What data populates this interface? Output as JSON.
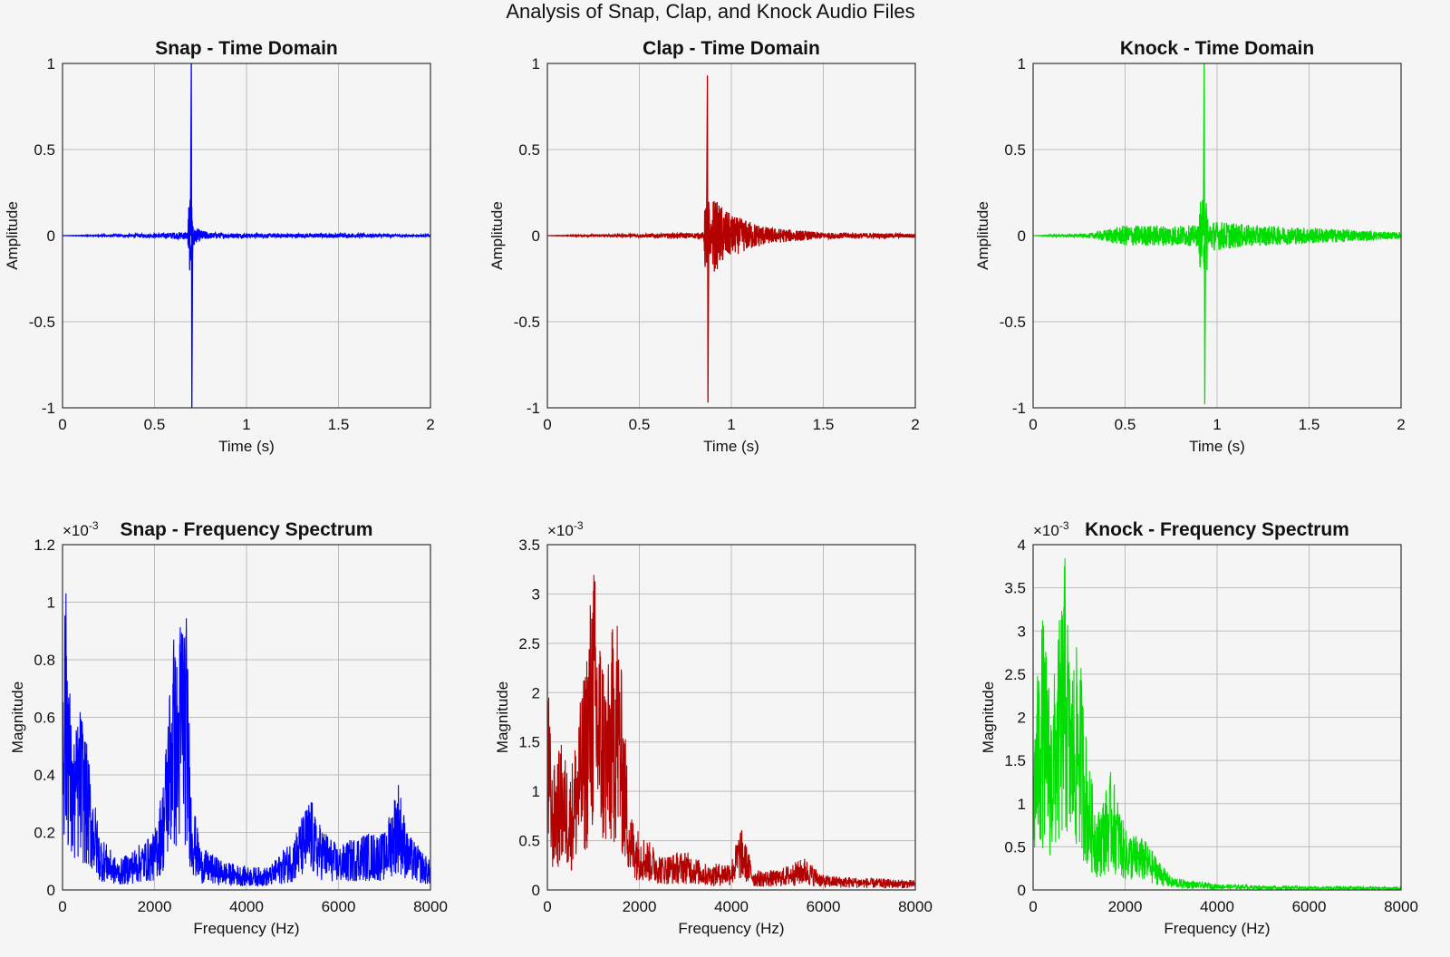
{
  "figure": {
    "suptitle": "Analysis of Snap, Clap, and Knock Audio Files"
  },
  "chart_data": [
    {
      "type": "line",
      "title": "Snap - Time Domain",
      "xlabel": "Time (s)",
      "ylabel": "Amplitude",
      "xlim": [
        0,
        2
      ],
      "ylim": [
        -1,
        1
      ],
      "xticks": [
        "0",
        "0.5",
        "1",
        "1.5",
        "2"
      ],
      "yticks": [
        "-1",
        "-0.5",
        "0",
        "0.5",
        "1"
      ],
      "color": "#0000ff",
      "grid": true,
      "series": [
        {
          "values": {
            "x": [
              0,
              0.3,
              0.5,
              0.68,
              0.7,
              0.7,
              0.72,
              0.8,
              1.0,
              1.5,
              2.0
            ],
            "y": [
              0,
              0.01,
              0.02,
              0.04,
              1.0,
              -1.0,
              0.07,
              0.03,
              0.02,
              0.02,
              0.01
            ]
          }
        }
      ]
    },
    {
      "type": "line",
      "title": "Clap - Time Domain",
      "xlabel": "Time (s)",
      "ylabel": "Amplitude",
      "xlim": [
        0,
        2
      ],
      "ylim": [
        -1,
        1
      ],
      "xticks": [
        "0",
        "0.5",
        "1",
        "1.5",
        "2"
      ],
      "yticks": [
        "-1",
        "-0.5",
        "0",
        "0.5",
        "1"
      ],
      "color": "#b30000",
      "grid": true,
      "series": [
        {
          "values": {
            "x": [
              0,
              0.3,
              0.6,
              0.85,
              0.87,
              0.87,
              0.9,
              1.0,
              1.2,
              1.5,
              2.0
            ],
            "y": [
              0,
              0.01,
              0.02,
              0.03,
              0.93,
              -0.97,
              0.37,
              0.2,
              0.08,
              0.03,
              0.02
            ]
          }
        }
      ]
    },
    {
      "type": "line",
      "title": "Knock - Time Domain",
      "xlabel": "Time (s)",
      "ylabel": "Amplitude",
      "xlim": [
        0,
        2
      ],
      "ylim": [
        -1,
        1
      ],
      "xticks": [
        "0",
        "0.5",
        "1",
        "1.5",
        "2"
      ],
      "yticks": [
        "-1",
        "-0.5",
        "0",
        "0.5",
        "1"
      ],
      "color": "#00dd00",
      "grid": true,
      "series": [
        {
          "values": {
            "x": [
              0,
              0.3,
              0.5,
              0.9,
              0.93,
              0.93,
              0.96,
              1.2,
              1.5,
              2.0
            ],
            "y": [
              0,
              0.02,
              0.1,
              0.1,
              1.0,
              -0.98,
              0.15,
              0.1,
              0.08,
              0.03
            ]
          }
        }
      ]
    },
    {
      "type": "line",
      "title": "Snap - Frequency Spectrum",
      "xlabel": "Frequency (Hz)",
      "ylabel": "Magnitude",
      "xlim": [
        0,
        8000
      ],
      "ylim": [
        0,
        1.2
      ],
      "xticks": [
        "0",
        "2000",
        "4000",
        "6000",
        "8000"
      ],
      "yticks": [
        "0",
        "0.2",
        "0.4",
        "0.6",
        "0.8",
        "1",
        "1.2"
      ],
      "exponent": "×10",
      "exponent_power": "-3",
      "color": "#0000ff",
      "grid": true,
      "series": [
        {
          "values": {
            "x": [
              0,
              100,
              200,
              400,
              800,
              1200,
              1600,
              2000,
              2200,
              2400,
              2500,
              2600,
              2700,
              2800,
              3000,
              3500,
              4000,
              4500,
              5000,
              5400,
              5500,
              6000,
              6500,
              7000,
              7300,
              7500,
              8000
            ],
            "y": [
              1.05,
              1.05,
              0.5,
              0.65,
              0.2,
              0.1,
              0.15,
              0.2,
              0.4,
              0.92,
              0.8,
              1.07,
              0.95,
              0.35,
              0.15,
              0.1,
              0.08,
              0.08,
              0.18,
              0.33,
              0.25,
              0.15,
              0.2,
              0.2,
              0.39,
              0.2,
              0.1
            ]
          }
        }
      ]
    },
    {
      "type": "line",
      "title": "",
      "xlabel": "Frequency (Hz)",
      "ylabel": "Magnitude",
      "xlim": [
        0,
        8000
      ],
      "ylim": [
        0,
        3.5
      ],
      "xticks": [
        "0",
        "2000",
        "4000",
        "6000",
        "8000"
      ],
      "yticks": [
        "0",
        "0.5",
        "1",
        "1.5",
        "2",
        "2.5",
        "3",
        "3.5"
      ],
      "exponent": "×10",
      "exponent_power": "-3",
      "color": "#b30000",
      "grid": true,
      "series": [
        {
          "values": {
            "x": [
              0,
              100,
              300,
              500,
              800,
              1000,
              1100,
              1300,
              1500,
              1800,
              2000,
              2500,
              3000,
              3500,
              4000,
              4200,
              4500,
              5000,
              5600,
              6000,
              7000,
              8000
            ],
            "y": [
              2.35,
              1.2,
              1.5,
              1.2,
              2.2,
              3.43,
              2.8,
              2.2,
              3.05,
              0.8,
              0.6,
              0.35,
              0.4,
              0.25,
              0.3,
              0.65,
              0.2,
              0.2,
              0.33,
              0.15,
              0.12,
              0.1
            ]
          }
        }
      ]
    },
    {
      "type": "line",
      "title": "Knock - Frequency Spectrum",
      "xlabel": "Frequency (Hz)",
      "ylabel": "Magnitude",
      "xlim": [
        0,
        8000
      ],
      "ylim": [
        0,
        4
      ],
      "xticks": [
        "0",
        "2000",
        "4000",
        "6000",
        "8000"
      ],
      "yticks": [
        "0",
        "0.5",
        "1",
        "1.5",
        "2",
        "2.5",
        "3",
        "3.5",
        "4"
      ],
      "exponent": "×10",
      "exponent_power": "-3",
      "color": "#00dd00",
      "grid": true,
      "series": [
        {
          "values": {
            "x": [
              0,
              200,
              400,
              600,
              700,
              800,
              1000,
              1200,
              1400,
              1600,
              1700,
              2000,
              2400,
              2800,
              3000,
              3500,
              4000,
              5000,
              6000,
              7000,
              8000
            ],
            "y": [
              1.8,
              3.25,
              2.2,
              3.3,
              3.95,
              2.6,
              2.9,
              1.5,
              0.9,
              1.2,
              1.4,
              0.7,
              0.6,
              0.3,
              0.15,
              0.1,
              0.07,
              0.05,
              0.04,
              0.04,
              0.03
            ]
          }
        }
      ]
    }
  ]
}
